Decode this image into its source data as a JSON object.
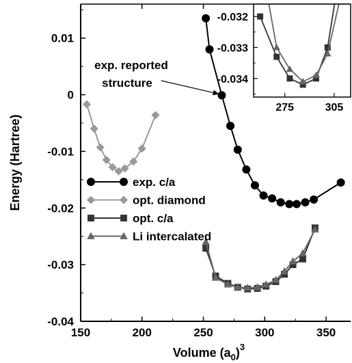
{
  "chart_data": [
    {
      "type": "line",
      "panel": "main",
      "xlabel": "Volume (a",
      "xlabel_sub": "0",
      "xlabel_sup": "3",
      "xlabel_close": ")",
      "ylabel": "Energy (Hartree)",
      "xlim": [
        150,
        370
      ],
      "ylim": [
        -0.04,
        0.016
      ],
      "xticks": [
        150,
        200,
        250,
        300,
        350
      ],
      "xtick_labels": [
        "150",
        "200",
        "250",
        "300",
        "350"
      ],
      "yticks": [
        0.01,
        0,
        -0.01,
        -0.02,
        -0.03,
        -0.04
      ],
      "ytick_labels": [
        "0.01",
        "0",
        "-0.01",
        "-0.02",
        "-0.03",
        "-0.04"
      ],
      "grid": false,
      "legend_position": "center-left",
      "series": [
        {
          "name": "exp. c/a",
          "color": "#000000",
          "marker": "circle",
          "x": [
            252,
            255,
            265,
            272,
            278,
            285,
            292,
            299,
            306,
            313,
            320,
            326,
            333,
            340,
            362
          ],
          "y": [
            0.0135,
            0.008,
            -0.0001,
            -0.0055,
            -0.0097,
            -0.0132,
            -0.016,
            -0.0178,
            -0.0183,
            -0.019,
            -0.0193,
            -0.0193,
            -0.019,
            -0.0185,
            -0.0155
          ]
        },
        {
          "name": "opt. diamond",
          "color": "#999999",
          "marker": "diamond",
          "x": [
            155,
            161,
            166,
            171,
            176,
            181,
            186,
            193,
            200,
            211
          ],
          "y": [
            -0.0017,
            -0.006,
            -0.0093,
            -0.0115,
            -0.0128,
            -0.0135,
            -0.013,
            -0.0118,
            -0.0095,
            -0.0036
          ]
        },
        {
          "name": "opt. c/a",
          "color": "#333333",
          "marker": "square",
          "x": [
            252,
            260,
            270,
            278,
            286,
            294,
            301,
            309,
            316,
            323,
            331,
            341
          ],
          "y": [
            -0.0271,
            -0.032,
            -0.0333,
            -0.034,
            -0.0343,
            -0.0342,
            -0.0338,
            -0.033,
            -0.0317,
            -0.03,
            -0.029,
            -0.0235
          ]
        },
        {
          "name": "Li intercalated",
          "color": "#666666",
          "marker": "triangle",
          "x": [
            252,
            260,
            270,
            278,
            286,
            294,
            301,
            309,
            316,
            323,
            331,
            341
          ],
          "y": [
            -0.026,
            -0.0323,
            -0.0335,
            -0.034,
            -0.0341,
            -0.034,
            -0.0335,
            -0.0327,
            -0.0312,
            -0.0294,
            -0.028,
            -0.0238
          ]
        }
      ],
      "annotations": [
        {
          "lines": [
            "exp. reported",
            "structure"
          ],
          "points_to_x": 264,
          "points_to_y": 0.0
        }
      ]
    },
    {
      "type": "line",
      "panel": "inset",
      "xlim": [
        256,
        315
      ],
      "ylim": [
        -0.0346,
        -0.0316
      ],
      "xticks": [
        275,
        305
      ],
      "xtick_labels": [
        "275",
        "305"
      ],
      "yticks": [
        -0.032,
        -0.033,
        -0.034
      ],
      "ytick_labels": [
        "-0.032",
        "-0.033",
        "-0.034"
      ],
      "grid": false,
      "series": [
        {
          "name": "opt. c/a",
          "color": "#333333",
          "marker": "square",
          "x": [
            260,
            270,
            278,
            286,
            294,
            301,
            310
          ],
          "y": [
            -0.032,
            -0.0333,
            -0.034,
            -0.0342,
            -0.034,
            -0.033,
            -0.03
          ]
        },
        {
          "name": "Li intercalated",
          "color": "#666666",
          "marker": "triangle",
          "x": [
            260,
            270,
            278,
            286,
            294,
            301,
            310
          ],
          "y": [
            -0.03,
            -0.033,
            -0.0337,
            -0.0341,
            -0.0339,
            -0.0332,
            -0.0311
          ]
        }
      ]
    }
  ]
}
